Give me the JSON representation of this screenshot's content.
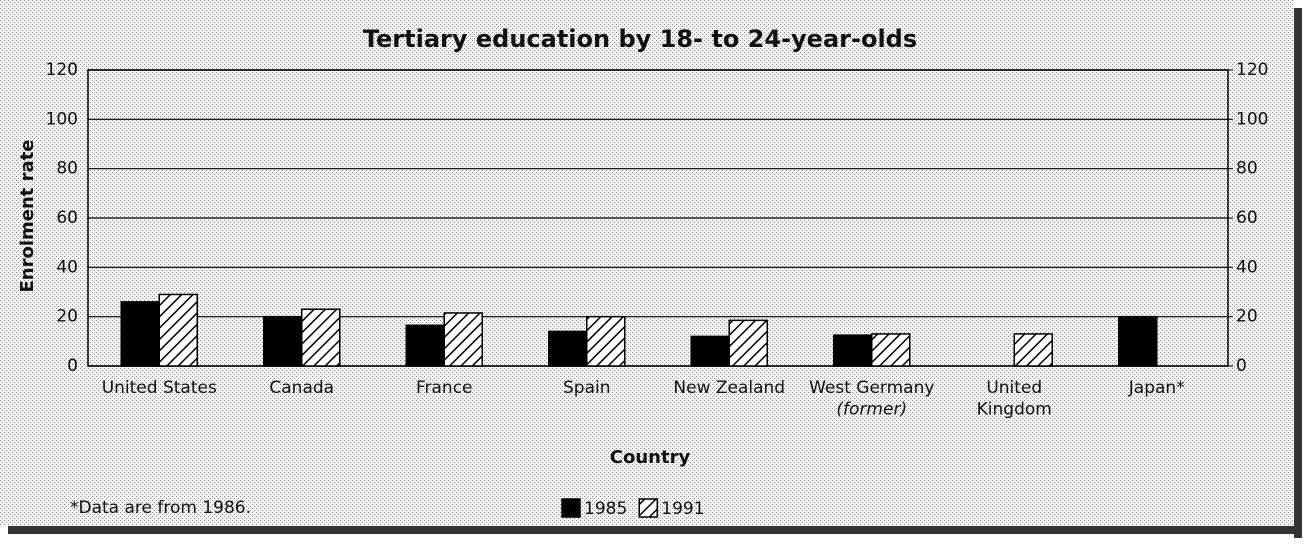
{
  "chart_data": {
    "type": "bar",
    "title": "Tertiary education by 18- to 24-year-olds",
    "x_label": "Country",
    "y_label": "Enrolment rate",
    "note": "*Data are from 1986.",
    "categories": [
      "United States",
      "Canada",
      "France",
      "Spain",
      "New Zealand",
      "West Germany\n(former)",
      "United\nKingdom",
      "Japan*"
    ],
    "series": [
      {
        "name": "1985",
        "color": "#000000",
        "pattern": "solid",
        "values": [
          26,
          20,
          16.5,
          14,
          12,
          12.5,
          null,
          20
        ]
      },
      {
        "name": "1991",
        "color": "#000000",
        "pattern": "hatch",
        "values": [
          29,
          23,
          21.5,
          20,
          18.5,
          13,
          13,
          null
        ]
      }
    ],
    "ylim": [
      0,
      120
    ],
    "yticks": [
      0,
      20,
      40,
      60,
      80,
      100,
      120
    ],
    "y2lim": [
      0,
      120
    ],
    "y2ticks": [
      0,
      20,
      40,
      60,
      80,
      100,
      120
    ],
    "grid": true,
    "legend": "bottom"
  }
}
